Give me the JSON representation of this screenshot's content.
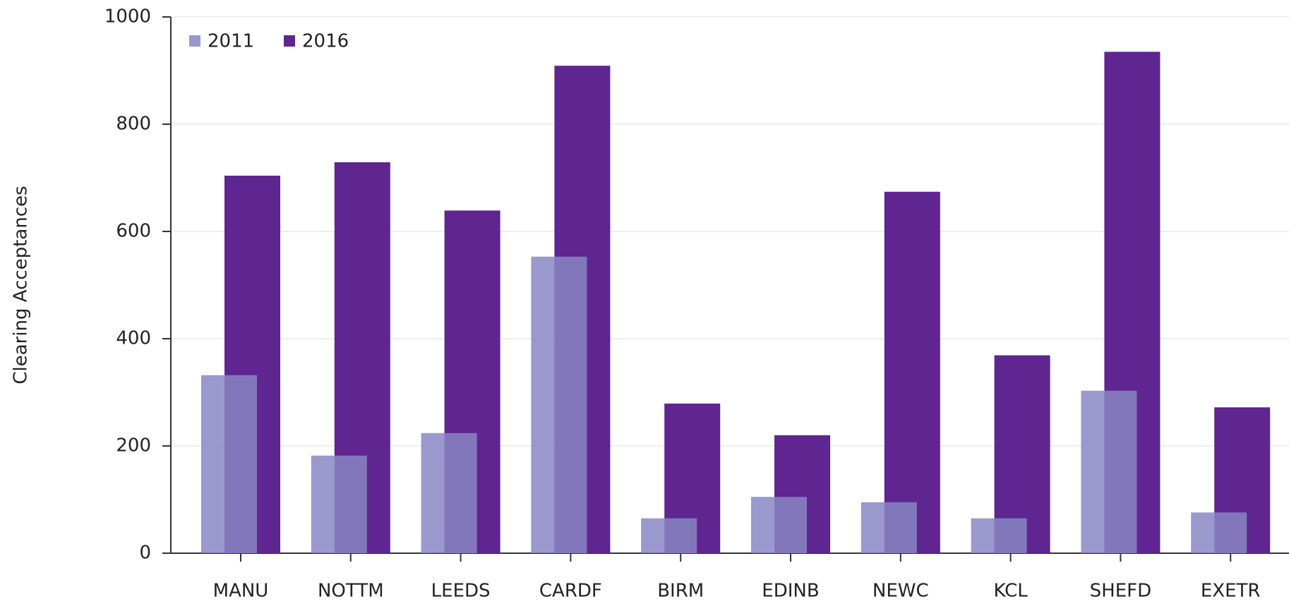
{
  "chart_data": {
    "type": "bar",
    "y_label": "Clearing Acceptances",
    "categories": [
      "MANU",
      "NOTTM",
      "LEEDS",
      "CARDF",
      "BIRM",
      "EDINB",
      "NEWC",
      "KCL",
      "SHEFD",
      "EXETR"
    ],
    "series": [
      {
        "name": "2011",
        "color": "#8a86c4",
        "values": [
          332,
          182,
          224,
          553,
          65,
          105,
          95,
          65,
          303,
          76
        ]
      },
      {
        "name": "2016",
        "color": "#5f2590",
        "values": [
          704,
          729,
          639,
          909,
          279,
          220,
          674,
          369,
          935,
          272
        ]
      }
    ],
    "ylim": [
      0,
      1000
    ],
    "yticks": [
      0,
      200,
      400,
      600,
      800,
      1000
    ],
    "grid": true,
    "legend": "top-left"
  }
}
